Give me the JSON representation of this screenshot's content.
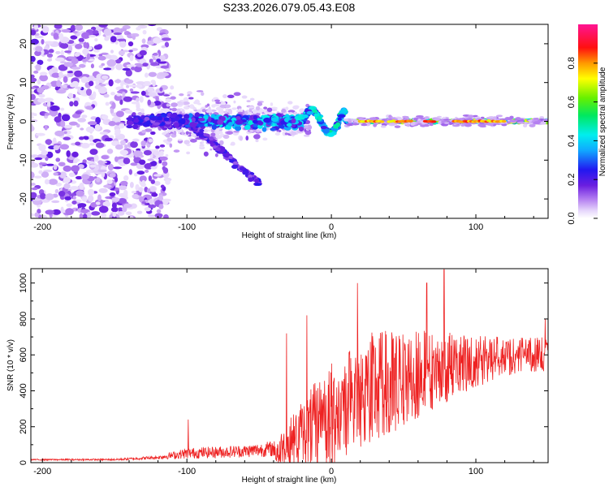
{
  "title": "S233.2026.079.05.43.E08",
  "chart_data": [
    {
      "type": "heatmap",
      "title": "S233.2026.079.05.43.E08",
      "xlabel": "Height of straight line (km)",
      "ylabel": "Frequency (Hz)",
      "xlim": [
        -208,
        150
      ],
      "ylim": [
        -25,
        25
      ],
      "xticks": [
        -200,
        -100,
        0,
        100
      ],
      "xtick_labels": [
        "-200",
        "-100",
        "0",
        "100"
      ],
      "yticks": [
        -20,
        -10,
        0,
        10,
        20
      ],
      "ytick_labels": [
        "-20",
        "-10",
        "0",
        "10",
        "20"
      ],
      "colorbar": {
        "label": "Normalized spectral amplitude",
        "range": [
          0,
          1
        ],
        "ticks": [
          0.0,
          0.2,
          0.4,
          0.6,
          0.8
        ],
        "tick_labels": [
          "0.0",
          "0.2",
          "0.4",
          "0.6",
          "0.8"
        ],
        "colormap": "rainbow (white-violet-blue-cyan-green-yellow-red-magenta)"
      },
      "features": {
        "ridge_start_km": -140,
        "ridge_freq_hz": 0,
        "secondary_branch": {
          "x_km": [
            -100,
            -75,
            -50
          ],
          "freq_hz": [
            0,
            -7,
            -16
          ]
        },
        "strongest_amplitude": 0.9
      }
    },
    {
      "type": "line",
      "xlabel": "Height of straight line (km)",
      "ylabel": "SNR (10 * v/v)",
      "xlim": [
        -208,
        150
      ],
      "ylim": [
        0,
        1080
      ],
      "xticks": [
        -200,
        -100,
        0,
        100
      ],
      "xtick_labels": [
        "-200",
        "-100",
        "0",
        "100"
      ],
      "yticks": [
        0,
        200,
        400,
        600,
        800,
        1000
      ],
      "ytick_labels": [
        "0",
        "200",
        "400",
        "600",
        "800",
        "1000"
      ],
      "series_color": "#ee2222",
      "envelope": {
        "x": [
          -208,
          -150,
          -120,
          -100,
          -60,
          -40,
          -30,
          -20,
          -10,
          0,
          10,
          20,
          30,
          40,
          50,
          60,
          70,
          80,
          90,
          100,
          110,
          120,
          130,
          140,
          150
        ],
        "baseline": [
          15,
          15,
          25,
          40,
          50,
          60,
          100,
          150,
          200,
          270,
          330,
          390,
          430,
          450,
          470,
          490,
          510,
          530,
          550,
          565,
          575,
          590,
          600,
          600,
          600
        ],
        "spread": [
          8,
          10,
          20,
          60,
          70,
          90,
          200,
          320,
          400,
          450,
          480,
          480,
          470,
          450,
          420,
          380,
          340,
          300,
          260,
          220,
          200,
          170,
          150,
          150,
          150
        ]
      },
      "spikes": [
        {
          "x": -99,
          "y": 240
        },
        {
          "x": -31,
          "y": 720
        },
        {
          "x": -17,
          "y": 820
        },
        {
          "x": 18,
          "y": 1000
        },
        {
          "x": 66,
          "y": 1000
        },
        {
          "x": 78,
          "y": 1075
        },
        {
          "x": 148,
          "y": 800
        }
      ]
    }
  ]
}
